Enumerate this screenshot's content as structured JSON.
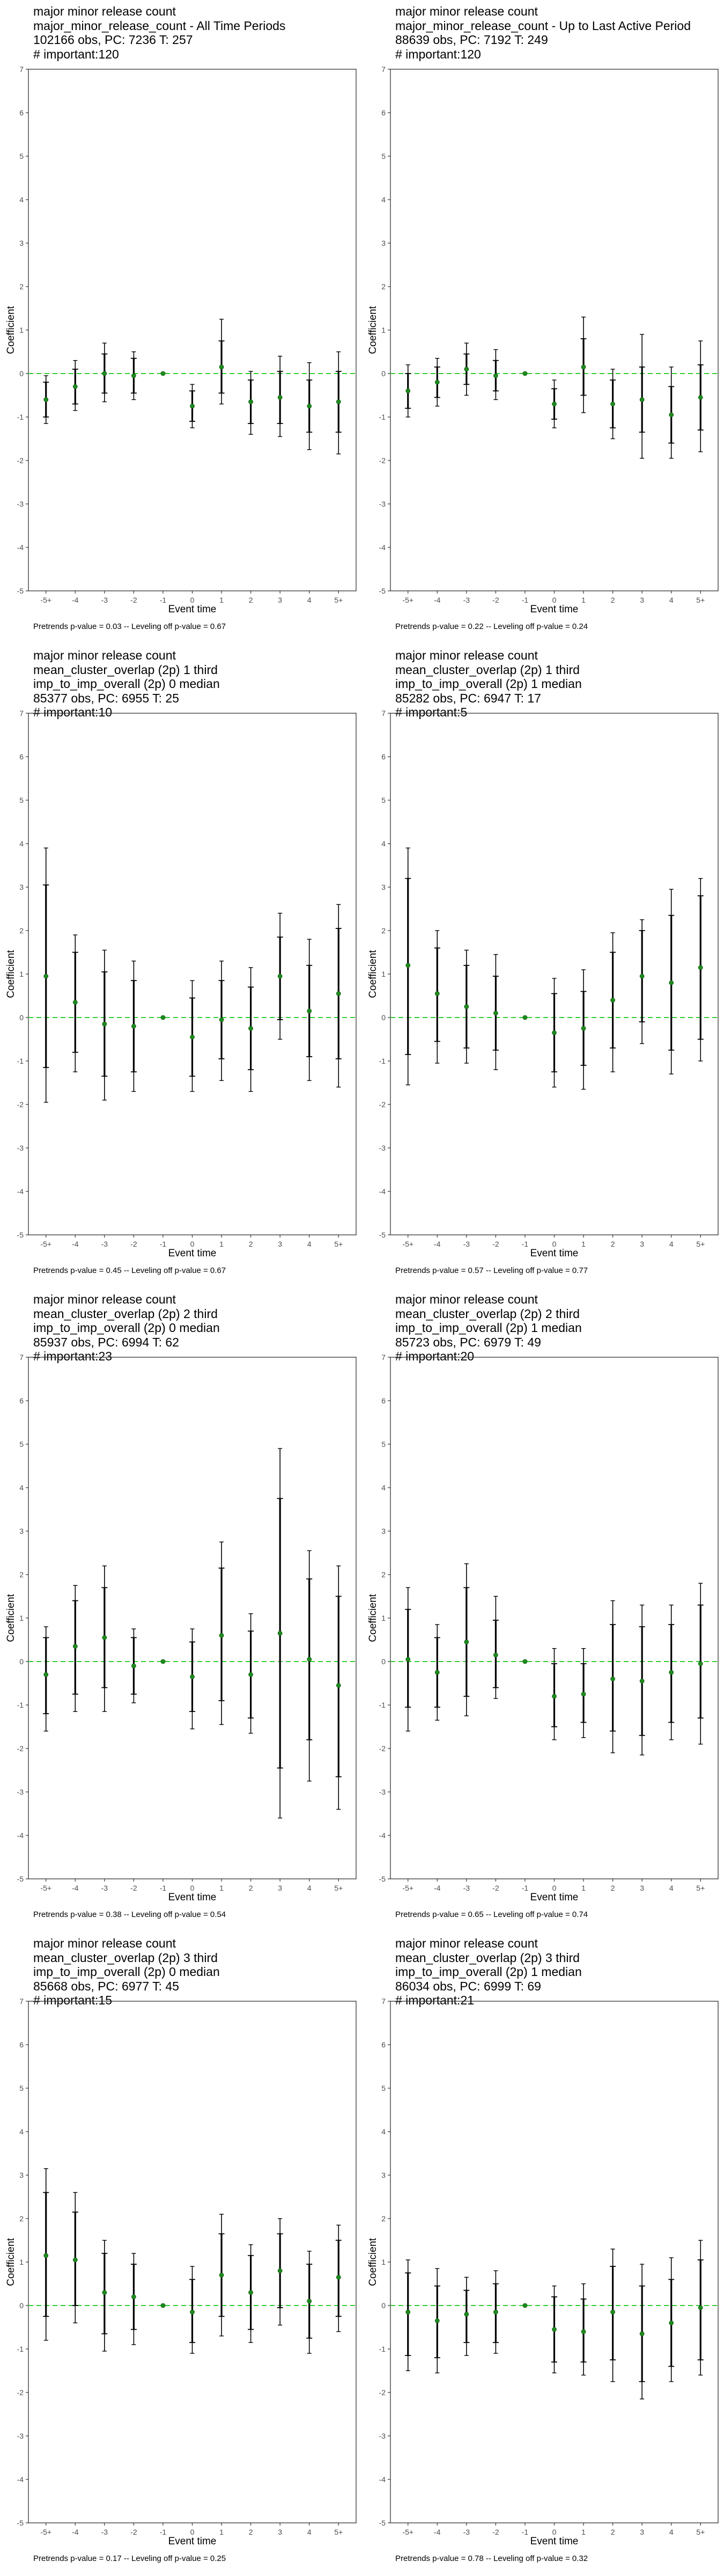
{
  "chart_data": [
    {
      "type": "scatter",
      "title_lines": [
        "major minor release count",
        "major_minor_release_count - All Time Periods",
        "102166 obs, PC: 7236 T: 257",
        "# important:120"
      ],
      "xlabel": "Event time",
      "ylabel": "Coefficient",
      "categories": [
        "-5+",
        "-4",
        "-3",
        "-2",
        "-1",
        "0",
        "1",
        "2",
        "3",
        "4",
        "5+"
      ],
      "ylim": [
        -5,
        7
      ],
      "yticks": [
        -5,
        -4,
        -3,
        -2,
        -1,
        0,
        1,
        2,
        3,
        4,
        5,
        6,
        7
      ],
      "series": [
        {
          "estimate": [
            -0.6,
            -0.3,
            0.0,
            -0.05,
            0.0,
            -0.75,
            0.15,
            -0.65,
            -0.55,
            -0.75,
            -0.65
          ],
          "ci_inner_low": [
            -1.0,
            -0.7,
            -0.45,
            -0.45,
            0.0,
            -1.1,
            -0.45,
            -1.15,
            -1.15,
            -1.35,
            -1.35
          ],
          "ci_inner_high": [
            -0.2,
            0.1,
            0.45,
            0.35,
            0.0,
            -0.4,
            0.75,
            -0.15,
            0.05,
            -0.15,
            0.05
          ],
          "ci_outer_low": [
            -1.15,
            -0.85,
            -0.65,
            -0.6,
            0.0,
            -1.25,
            -0.7,
            -1.4,
            -1.45,
            -1.75,
            -1.85
          ],
          "ci_outer_high": [
            -0.05,
            0.3,
            0.7,
            0.5,
            0.0,
            -0.25,
            1.25,
            0.05,
            0.4,
            0.25,
            0.5
          ]
        }
      ],
      "reference_line": 0,
      "caption": "Pretrends p-value = 0.03 -- Leveling off p-value = 0.67"
    },
    {
      "type": "scatter",
      "title_lines": [
        "major minor release count",
        "major_minor_release_count - Up to Last Active Period",
        "88639 obs, PC: 7192 T: 249",
        "# important:120"
      ],
      "xlabel": "Event time",
      "ylabel": "Coefficient",
      "categories": [
        "-5+",
        "-4",
        "-3",
        "-2",
        "-1",
        "0",
        "1",
        "2",
        "3",
        "4",
        "5+"
      ],
      "ylim": [
        -5,
        7
      ],
      "yticks": [
        -5,
        -4,
        -3,
        -2,
        -1,
        0,
        1,
        2,
        3,
        4,
        5,
        6,
        7
      ],
      "series": [
        {
          "estimate": [
            -0.4,
            -0.2,
            0.1,
            -0.05,
            0.0,
            -0.7,
            0.15,
            -0.7,
            -0.6,
            -0.95,
            -0.55
          ],
          "ci_inner_low": [
            -0.8,
            -0.55,
            -0.25,
            -0.4,
            0.0,
            -1.05,
            -0.5,
            -1.25,
            -1.35,
            -1.6,
            -1.3
          ],
          "ci_inner_high": [
            0.0,
            0.15,
            0.45,
            0.3,
            0.0,
            -0.35,
            0.8,
            -0.15,
            0.15,
            -0.3,
            0.2
          ],
          "ci_outer_low": [
            -1.0,
            -0.75,
            -0.5,
            -0.6,
            0.0,
            -1.25,
            -0.9,
            -1.5,
            -1.95,
            -1.95,
            -1.8
          ],
          "ci_outer_high": [
            0.2,
            0.35,
            0.7,
            0.55,
            0.0,
            -0.15,
            1.3,
            0.1,
            0.9,
            0.15,
            0.75
          ]
        }
      ],
      "reference_line": 0,
      "caption": "Pretrends p-value = 0.22 -- Leveling off p-value = 0.24"
    },
    {
      "type": "scatter",
      "title_lines": [
        "major minor release count",
        "mean_cluster_overlap (2p) 1 third",
        "imp_to_imp_overall (2p) 0 median",
        "85377 obs, PC: 6955 T: 25",
        "# important:10"
      ],
      "xlabel": "Event time",
      "ylabel": "Coefficient",
      "categories": [
        "-5+",
        "-4",
        "-3",
        "-2",
        "-1",
        "0",
        "1",
        "2",
        "3",
        "4",
        "5+"
      ],
      "ylim": [
        -5,
        7
      ],
      "yticks": [
        -5,
        -4,
        -3,
        -2,
        -1,
        0,
        1,
        2,
        3,
        4,
        5,
        6,
        7
      ],
      "series": [
        {
          "estimate": [
            0.95,
            0.35,
            -0.15,
            -0.2,
            0.0,
            -0.45,
            -0.05,
            -0.25,
            0.95,
            0.15,
            0.55
          ],
          "ci_inner_low": [
            -1.15,
            -0.8,
            -1.35,
            -1.25,
            0.0,
            -1.35,
            -0.95,
            -1.2,
            -0.05,
            -0.9,
            -0.95
          ],
          "ci_inner_high": [
            3.05,
            1.5,
            1.05,
            0.85,
            0.0,
            0.45,
            0.85,
            0.7,
            1.85,
            1.2,
            2.05
          ],
          "ci_outer_low": [
            -1.95,
            -1.25,
            -1.9,
            -1.7,
            0.0,
            -1.7,
            -1.45,
            -1.7,
            -0.5,
            -1.45,
            -1.6
          ],
          "ci_outer_high": [
            3.9,
            1.9,
            1.55,
            1.3,
            0.0,
            0.85,
            1.3,
            1.15,
            2.4,
            1.8,
            2.6
          ]
        }
      ],
      "reference_line": 0,
      "caption": "Pretrends p-value = 0.45 -- Leveling off p-value = 0.67"
    },
    {
      "type": "scatter",
      "title_lines": [
        "major minor release count",
        "mean_cluster_overlap (2p) 1 third",
        "imp_to_imp_overall (2p) 1 median",
        "85282 obs, PC: 6947 T: 17",
        "# important:5"
      ],
      "xlabel": "Event time",
      "ylabel": "Coefficient",
      "categories": [
        "-5+",
        "-4",
        "-3",
        "-2",
        "-1",
        "0",
        "1",
        "2",
        "3",
        "4",
        "5+"
      ],
      "ylim": [
        -5,
        7
      ],
      "yticks": [
        -5,
        -4,
        -3,
        -2,
        -1,
        0,
        1,
        2,
        3,
        4,
        5,
        6,
        7
      ],
      "series": [
        {
          "estimate": [
            1.2,
            0.55,
            0.25,
            0.1,
            0.0,
            -0.35,
            -0.25,
            0.4,
            0.95,
            0.8,
            1.15
          ],
          "ci_inner_low": [
            -0.85,
            -0.55,
            -0.7,
            -0.75,
            0.0,
            -1.25,
            -1.1,
            -0.7,
            -0.1,
            -0.75,
            -0.5
          ],
          "ci_inner_high": [
            3.2,
            1.6,
            1.2,
            0.95,
            0.0,
            0.55,
            0.6,
            1.5,
            2.0,
            2.35,
            2.8
          ],
          "ci_outer_low": [
            -1.55,
            -1.05,
            -1.05,
            -1.2,
            0.0,
            -1.6,
            -1.65,
            -1.25,
            -0.6,
            -1.3,
            -1.0
          ],
          "ci_outer_high": [
            3.9,
            2.0,
            1.55,
            1.45,
            0.0,
            0.9,
            1.1,
            1.95,
            2.25,
            2.95,
            3.2
          ]
        }
      ],
      "reference_line": 0,
      "caption": "Pretrends p-value = 0.57 -- Leveling off p-value = 0.77"
    },
    {
      "type": "scatter",
      "title_lines": [
        "major minor release count",
        "mean_cluster_overlap (2p) 2 third",
        "imp_to_imp_overall (2p) 0 median",
        "85937 obs, PC: 6994 T: 62",
        "# important:23"
      ],
      "xlabel": "Event time",
      "ylabel": "Coefficient",
      "categories": [
        "-5+",
        "-4",
        "-3",
        "-2",
        "-1",
        "0",
        "1",
        "2",
        "3",
        "4",
        "5+"
      ],
      "ylim": [
        -5,
        7
      ],
      "yticks": [
        -5,
        -4,
        -3,
        -2,
        -1,
        0,
        1,
        2,
        3,
        4,
        5,
        6,
        7
      ],
      "series": [
        {
          "estimate": [
            -0.3,
            0.35,
            0.55,
            -0.1,
            0.0,
            -0.35,
            0.6,
            -0.3,
            0.65,
            0.05,
            -0.55
          ],
          "ci_inner_low": [
            -1.2,
            -0.75,
            -0.6,
            -0.75,
            0.0,
            -1.15,
            -0.9,
            -1.3,
            -2.45,
            -1.8,
            -2.65
          ],
          "ci_inner_high": [
            0.55,
            1.4,
            1.7,
            0.55,
            0.0,
            0.45,
            2.15,
            0.7,
            3.75,
            1.9,
            1.5
          ],
          "ci_outer_low": [
            -1.6,
            -1.15,
            -1.15,
            -0.95,
            0.0,
            -1.55,
            -1.45,
            -1.65,
            -3.6,
            -2.75,
            -3.4
          ],
          "ci_outer_high": [
            0.8,
            1.75,
            2.2,
            0.75,
            0.0,
            0.75,
            2.75,
            1.1,
            4.9,
            2.55,
            2.2
          ]
        }
      ],
      "reference_line": 0,
      "caption": "Pretrends p-value = 0.38 -- Leveling off p-value = 0.54"
    },
    {
      "type": "scatter",
      "title_lines": [
        "major minor release count",
        "mean_cluster_overlap (2p) 2 third",
        "imp_to_imp_overall (2p) 1 median",
        "85723 obs, PC: 6979 T: 49",
        "# important:20"
      ],
      "xlabel": "Event time",
      "ylabel": "Coefficient",
      "categories": [
        "-5+",
        "-4",
        "-3",
        "-2",
        "-1",
        "0",
        "1",
        "2",
        "3",
        "4",
        "5+"
      ],
      "ylim": [
        -5,
        7
      ],
      "yticks": [
        -5,
        -4,
        -3,
        -2,
        -1,
        0,
        1,
        2,
        3,
        4,
        5,
        6,
        7
      ],
      "series": [
        {
          "estimate": [
            0.05,
            -0.25,
            0.45,
            0.15,
            0.0,
            -0.8,
            -0.75,
            -0.4,
            -0.45,
            -0.25,
            -0.05
          ],
          "ci_inner_low": [
            -1.05,
            -1.05,
            -0.8,
            -0.6,
            0.0,
            -1.5,
            -1.4,
            -1.6,
            -1.7,
            -1.4,
            -1.3
          ],
          "ci_inner_high": [
            1.2,
            0.55,
            1.7,
            0.95,
            0.0,
            -0.05,
            -0.05,
            0.85,
            0.8,
            0.85,
            1.3
          ],
          "ci_outer_low": [
            -1.6,
            -1.35,
            -1.25,
            -0.85,
            0.0,
            -1.8,
            -1.75,
            -2.1,
            -2.15,
            -1.8,
            -1.9
          ],
          "ci_outer_high": [
            1.7,
            0.85,
            2.25,
            1.5,
            0.0,
            0.3,
            0.3,
            1.4,
            1.3,
            1.3,
            1.8
          ]
        }
      ],
      "reference_line": 0,
      "caption": "Pretrends p-value = 0.65 -- Leveling off p-value = 0.74"
    },
    {
      "type": "scatter",
      "title_lines": [
        "major minor release count",
        "mean_cluster_overlap (2p) 3 third",
        "imp_to_imp_overall (2p) 0 median",
        "85668 obs, PC: 6977 T: 45",
        "# important:15"
      ],
      "xlabel": "Event time",
      "ylabel": "Coefficient",
      "categories": [
        "-5+",
        "-4",
        "-3",
        "-2",
        "-1",
        "0",
        "1",
        "2",
        "3",
        "4",
        "5+"
      ],
      "ylim": [
        -5,
        7
      ],
      "yticks": [
        -5,
        -4,
        -3,
        -2,
        -1,
        0,
        1,
        2,
        3,
        4,
        5,
        6,
        7
      ],
      "series": [
        {
          "estimate": [
            1.15,
            1.05,
            0.3,
            0.2,
            0.0,
            -0.15,
            0.7,
            0.3,
            0.8,
            0.1,
            0.65
          ],
          "ci_inner_low": [
            -0.25,
            0.0,
            -0.65,
            -0.55,
            0.0,
            -0.85,
            -0.25,
            -0.55,
            -0.05,
            -0.75,
            -0.25
          ],
          "ci_inner_high": [
            2.6,
            2.15,
            1.2,
            0.95,
            0.0,
            0.6,
            1.65,
            1.15,
            1.65,
            0.95,
            1.5
          ],
          "ci_outer_low": [
            -0.8,
            -0.4,
            -1.05,
            -0.9,
            0.0,
            -1.1,
            -0.7,
            -0.85,
            -0.45,
            -1.1,
            -0.6
          ],
          "ci_outer_high": [
            3.15,
            2.6,
            1.5,
            1.2,
            0.0,
            0.9,
            2.1,
            1.4,
            2.0,
            1.25,
            1.85
          ]
        }
      ],
      "reference_line": 0,
      "caption": "Pretrends p-value = 0.17 -- Leveling off p-value = 0.25"
    },
    {
      "type": "scatter",
      "title_lines": [
        "major minor release count",
        "mean_cluster_overlap (2p) 3 third",
        "imp_to_imp_overall (2p) 1 median",
        "86034 obs, PC: 6999 T: 69",
        "# important:21"
      ],
      "xlabel": "Event time",
      "ylabel": "Coefficient",
      "categories": [
        "-5+",
        "-4",
        "-3",
        "-2",
        "-1",
        "0",
        "1",
        "2",
        "3",
        "4",
        "5+"
      ],
      "ylim": [
        -5,
        7
      ],
      "yticks": [
        -5,
        -4,
        -3,
        -2,
        -1,
        0,
        1,
        2,
        3,
        4,
        5,
        6,
        7
      ],
      "series": [
        {
          "estimate": [
            -0.15,
            -0.35,
            -0.2,
            -0.15,
            0.0,
            -0.55,
            -0.6,
            -0.15,
            -0.65,
            -0.4,
            -0.05
          ],
          "ci_inner_low": [
            -1.15,
            -1.2,
            -0.85,
            -0.85,
            0.0,
            -1.3,
            -1.3,
            -1.25,
            -1.75,
            -1.4,
            -1.25
          ],
          "ci_inner_high": [
            0.75,
            0.45,
            0.35,
            0.5,
            0.0,
            0.2,
            0.15,
            0.9,
            0.45,
            0.6,
            1.05
          ],
          "ci_outer_low": [
            -1.5,
            -1.55,
            -1.15,
            -1.1,
            0.0,
            -1.55,
            -1.6,
            -1.75,
            -2.15,
            -1.75,
            -1.6
          ],
          "ci_outer_high": [
            1.05,
            0.85,
            0.65,
            0.8,
            0.0,
            0.45,
            0.5,
            1.3,
            0.95,
            1.1,
            1.5
          ]
        }
      ],
      "reference_line": 0,
      "caption": "Pretrends p-value = 0.78 -- Leveling off p-value = 0.32"
    }
  ],
  "colors": {
    "point": "#1f8a1f",
    "reference_line": "#33cc33",
    "errorbar": "#000000",
    "axis": "#333333",
    "tick_label": "#4d4d4d"
  }
}
